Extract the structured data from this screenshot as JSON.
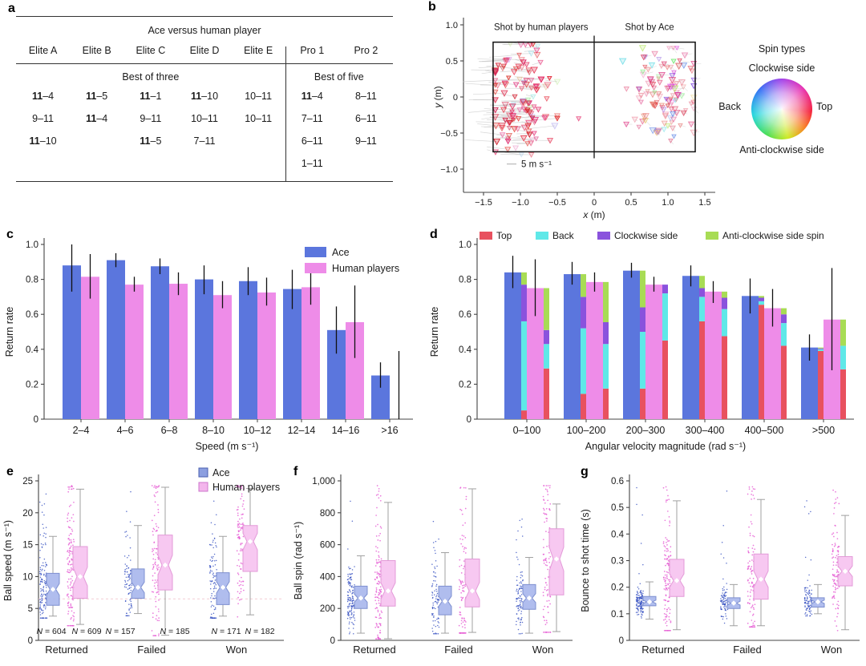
{
  "letters": {
    "a": "a",
    "b": "b",
    "c": "c",
    "d": "d",
    "e": "e",
    "f": "f",
    "g": "g"
  },
  "colors": {
    "ace_blue": "#5b76dd",
    "human_pink": "#ee8ce8",
    "ace_box_fill": "#a7b6ec",
    "ace_box_stroke": "#7d8fd0",
    "human_box_fill": "#f6c2ef",
    "human_box_stroke": "#e39ad8",
    "ace_dot": "#2f4bbf",
    "human_dot": "#e556d2",
    "top_red": "#e8515f",
    "back_cyan": "#5fe8e8",
    "cw_purple": "#8a52dd",
    "acw_green": "#a8dc55",
    "axis": "#444444",
    "error_bar": "#111111",
    "whisker": "#a0a0a0",
    "ref_line": "#f2ccd4",
    "table_line": "#111111"
  },
  "spin_wheel": {
    "title": "Spin types",
    "top": "Clockwise side",
    "left": "Back",
    "right": "Top",
    "bottom": "Anti-clockwise side"
  },
  "chart_data": [
    {
      "id": "a",
      "type": "table",
      "title": "Ace versus human player",
      "columns": [
        "Elite A",
        "Elite B",
        "Elite C",
        "Elite D",
        "Elite E",
        "Pro 1",
        "Pro 2"
      ],
      "group_headers": [
        {
          "label": "Best of three",
          "span": 5
        },
        {
          "label": "Best of five",
          "span": 2
        }
      ],
      "rows": [
        [
          "11–4",
          "11–5",
          "11–1",
          "11–10",
          "10–11",
          "11–4",
          "8–11"
        ],
        [
          "9–11",
          "11–4",
          "9–11",
          "10–11",
          "10–11",
          "7–11",
          "6–11"
        ],
        [
          "11–10",
          "",
          "11–5",
          "7–11",
          "",
          "6–11",
          "9–11"
        ],
        [
          "",
          "",
          "",
          "",
          "",
          "1–11",
          ""
        ]
      ],
      "bold_rule": "ace score 11 shown bold when cell starts with 11–"
    },
    {
      "id": "b",
      "type": "scatter",
      "region_labels": [
        "Shot by human players",
        "Shot by Ace"
      ],
      "scale_label": "5 m s⁻¹",
      "xlabel_var": "x",
      "xlabel_unit": " (m)",
      "ylabel_var": "y",
      "ylabel_unit": " (m)",
      "xticks": [
        [
          -1.5,
          "−1.5"
        ],
        [
          -1.0,
          "−1.0"
        ],
        [
          -0.5,
          "−0.5"
        ],
        [
          0,
          "0"
        ],
        [
          0.5,
          "0.5"
        ],
        [
          1.0,
          "1.0"
        ],
        [
          1.5,
          "1.5"
        ]
      ],
      "yticks": [
        [
          1.0,
          "1.0"
        ],
        [
          0.5,
          "0.5"
        ],
        [
          0,
          "0"
        ],
        [
          -0.5,
          "−0.5"
        ],
        [
          -1.0,
          "−1.0"
        ]
      ],
      "table_rect": {
        "x": [
          -1.37,
          1.37
        ],
        "y": [
          -0.76,
          0.76
        ]
      },
      "net_x": 0,
      "points_spec": {
        "human": {
          "count": 135,
          "x_center": -0.98,
          "x_sd": 0.21,
          "x_min": -1.34,
          "x_max": -0.5,
          "y_center": -0.05,
          "y_sd": 0.4,
          "y_min": -0.8,
          "y_max": 0.73,
          "tail": "long-left",
          "palette": "red-pink"
        },
        "ace": {
          "count": 120,
          "x_center": 0.95,
          "x_sd": 0.23,
          "x_min": 0.32,
          "x_max": 1.35,
          "y_center": 0.02,
          "y_sd": 0.33,
          "y_min": -0.72,
          "y_max": 0.68,
          "tail": "short",
          "palette": "mixed"
        },
        "extra": [
          [
            -0.21,
            -0.3
          ]
        ]
      }
    },
    {
      "id": "c",
      "type": "bar",
      "ylabel": "Return rate",
      "xlabel": "Speed (m s⁻¹)",
      "ylim": [
        0,
        1
      ],
      "yticks": [
        [
          0,
          "0"
        ],
        [
          0.2,
          "0.2"
        ],
        [
          0.4,
          "0.4"
        ],
        [
          0.6,
          "0.6"
        ],
        [
          0.8,
          "0.8"
        ],
        [
          1,
          "1.0"
        ]
      ],
      "categories": [
        "2–4",
        "4–6",
        "6–8",
        "8–10",
        "10–12",
        "12–14",
        "14–16",
        ">16"
      ],
      "series": [
        {
          "name": "Ace",
          "color_key": "ace_blue",
          "values": [
            0.88,
            0.91,
            0.875,
            0.8,
            0.79,
            0.745,
            0.51,
            0.25
          ],
          "errors": [
            [
              0.73,
              1.0
            ],
            [
              0.87,
              0.95
            ],
            [
              0.83,
              0.92
            ],
            [
              0.715,
              0.88
            ],
            [
              0.71,
              0.87
            ],
            [
              0.63,
              0.855
            ],
            [
              0.375,
              0.645
            ],
            [
              0.18,
              0.325
            ]
          ]
        },
        {
          "name": "Human players",
          "color_key": "human_pink",
          "values": [
            0.815,
            0.77,
            0.775,
            0.71,
            0.725,
            0.755,
            0.555,
            0
          ],
          "errors": [
            [
              0.69,
              0.945
            ],
            [
              0.73,
              0.815
            ],
            [
              0.71,
              0.84
            ],
            [
              0.635,
              0.79
            ],
            [
              0.65,
              0.81
            ],
            [
              0.655,
              0.855
            ],
            [
              0.35,
              0.765
            ],
            [
              0.0,
              0.39
            ]
          ]
        }
      ],
      "legend": [
        "Ace",
        "Human players"
      ]
    },
    {
      "id": "d",
      "type": "bar-stacked",
      "ylabel": "Return rate",
      "xlabel": "Angular velocity magnitude (rad s⁻¹)",
      "ylim": [
        0,
        1
      ],
      "yticks": [
        [
          0,
          "0"
        ],
        [
          0.2,
          "0.2"
        ],
        [
          0.4,
          "0.4"
        ],
        [
          0.6,
          "0.6"
        ],
        [
          0.8,
          "0.8"
        ],
        [
          1,
          "1.0"
        ]
      ],
      "categories": [
        "0–100",
        "100–200",
        "200–300",
        "300–400",
        "400–500",
        ">500"
      ],
      "legend": [
        {
          "label": "Top",
          "color_key": "top_red"
        },
        {
          "label": "Back",
          "color_key": "back_cyan"
        },
        {
          "label": "Clockwise side",
          "color_key": "cw_purple"
        },
        {
          "label": "Anti-clockwise side spin",
          "color_key": "acw_green"
        }
      ],
      "series": [
        {
          "name": "Ace",
          "color_key": "ace_blue",
          "values": [
            0.84,
            0.83,
            0.85,
            0.82,
            0.705,
            0.41
          ],
          "errors": [
            [
              0.75,
              0.935
            ],
            [
              0.77,
              0.9
            ],
            [
              0.81,
              0.895
            ],
            [
              0.76,
              0.88
            ],
            [
              0.605,
              0.805
            ],
            [
              0.335,
              0.485
            ]
          ],
          "stacks": [
            [
              0.05,
              0.51,
              0.21,
              0.07
            ],
            [
              0.145,
              0.375,
              0.18,
              0.13
            ],
            [
              0.175,
              0.325,
              0.14,
              0.21
            ],
            [
              0.56,
              0.14,
              0.05,
              0.07
            ],
            [
              0.655,
              0.02,
              0.02,
              0.01
            ],
            [
              0.39,
              0.01,
              0.005,
              0.005
            ]
          ]
        },
        {
          "name": "Human players",
          "color_key": "human_pink",
          "values": [
            0.75,
            0.785,
            0.77,
            0.73,
            0.635,
            0.57
          ],
          "errors": [
            [
              0.59,
              0.915
            ],
            [
              0.73,
              0.84
            ],
            [
              0.73,
              0.815
            ],
            [
              0.665,
              0.79
            ],
            [
              0.53,
              0.745
            ],
            [
              0.28,
              0.865
            ]
          ],
          "stacks": [
            [
              0.29,
              0.14,
              0.08,
              0.24
            ],
            [
              0.175,
              0.255,
              0.125,
              0.23
            ],
            [
              0.45,
              0.27,
              0.05,
              0.0
            ],
            [
              0.475,
              0.155,
              0.065,
              0.035
            ],
            [
              0.42,
              0.13,
              0.05,
              0.035
            ],
            [
              0.285,
              0.135,
              0.0,
              0.15
            ]
          ]
        }
      ]
    },
    {
      "id": "e",
      "type": "boxplot",
      "ylabel": "Ball speed (m s⁻¹)",
      "ylim": [
        0,
        25
      ],
      "yticks": [
        [
          0,
          "0"
        ],
        [
          5,
          "5"
        ],
        [
          10,
          "10"
        ],
        [
          15,
          "15"
        ],
        [
          20,
          "20"
        ],
        [
          25,
          "25"
        ]
      ],
      "groups": [
        "Returned",
        "Failed",
        "Won"
      ],
      "legend": [
        "Ace",
        "Human players"
      ],
      "ref_line_y": 6.5,
      "boxes": {
        "ace": [
          {
            "lo": 3.8,
            "q1": 5.5,
            "med": 8.0,
            "q3": 10.5,
            "hi": 16.3
          },
          {
            "lo": 4.2,
            "q1": 6.6,
            "med": 8.3,
            "q3": 11.2,
            "hi": 18.0
          },
          {
            "lo": 3.8,
            "q1": 5.6,
            "med": 8.3,
            "q3": 10.6,
            "hi": 16.3
          }
        ],
        "human": [
          {
            "lo": 2.5,
            "q1": 6.6,
            "med": 10.0,
            "q3": 14.7,
            "hi": 23.7
          },
          {
            "lo": 0.8,
            "q1": 7.9,
            "med": 11.8,
            "q3": 16.5,
            "hi": 24.0
          },
          {
            "lo": 4.0,
            "q1": 10.8,
            "med": 15.5,
            "q3": 18.0,
            "hi": 23.8
          }
        ]
      },
      "ns": {
        "ace": [
          "N = 604",
          "N = 157",
          "N = 171"
        ],
        "human": [
          "N = 609",
          "N = 185",
          "N = 182"
        ]
      }
    },
    {
      "id": "f",
      "type": "boxplot",
      "ylabel": "Ball spin (rad s⁻¹)",
      "ylim": [
        0,
        1000
      ],
      "yticks": [
        [
          0,
          "0"
        ],
        [
          200,
          "200"
        ],
        [
          400,
          "400"
        ],
        [
          600,
          "600"
        ],
        [
          800,
          "800"
        ],
        [
          1000,
          "1,000"
        ]
      ],
      "groups": [
        "Returned",
        "Failed",
        "Won"
      ],
      "boxes": {
        "ace": [
          {
            "lo": 45,
            "q1": 200,
            "med": 265,
            "q3": 340,
            "hi": 530
          },
          {
            "lo": 45,
            "q1": 160,
            "med": 245,
            "q3": 340,
            "hi": 550
          },
          {
            "lo": 45,
            "q1": 195,
            "med": 265,
            "q3": 350,
            "hi": 520
          }
        ],
        "human": [
          {
            "lo": 10,
            "q1": 215,
            "med": 310,
            "q3": 500,
            "hi": 865
          },
          {
            "lo": 50,
            "q1": 210,
            "med": 310,
            "q3": 510,
            "hi": 950
          },
          {
            "lo": 55,
            "q1": 285,
            "med": 510,
            "q3": 700,
            "hi": 855
          }
        ]
      }
    },
    {
      "id": "g",
      "type": "boxplot",
      "ylabel": "Bounce to shot time (s)",
      "ylim": [
        0,
        0.6
      ],
      "yticks": [
        [
          0,
          "0"
        ],
        [
          0.1,
          "0.1"
        ],
        [
          0.2,
          "0.2"
        ],
        [
          0.3,
          "0.3"
        ],
        [
          0.4,
          "0.4"
        ],
        [
          0.5,
          "0.5"
        ],
        [
          0.6,
          "0.6"
        ]
      ],
      "groups": [
        "Returned",
        "Failed",
        "Won"
      ],
      "boxes": {
        "ace": [
          {
            "lo": 0.08,
            "q1": 0.13,
            "med": 0.145,
            "q3": 0.165,
            "hi": 0.22
          },
          {
            "lo": 0.055,
            "q1": 0.12,
            "med": 0.14,
            "q3": 0.16,
            "hi": 0.21
          },
          {
            "lo": 0.1,
            "q1": 0.125,
            "med": 0.145,
            "q3": 0.16,
            "hi": 0.21
          }
        ],
        "human": [
          {
            "lo": 0.04,
            "q1": 0.165,
            "med": 0.225,
            "q3": 0.305,
            "hi": 0.525
          },
          {
            "lo": 0.055,
            "q1": 0.155,
            "med": 0.23,
            "q3": 0.325,
            "hi": 0.53
          },
          {
            "lo": 0.04,
            "q1": 0.205,
            "med": 0.26,
            "q3": 0.315,
            "hi": 0.47
          }
        ]
      }
    }
  ]
}
